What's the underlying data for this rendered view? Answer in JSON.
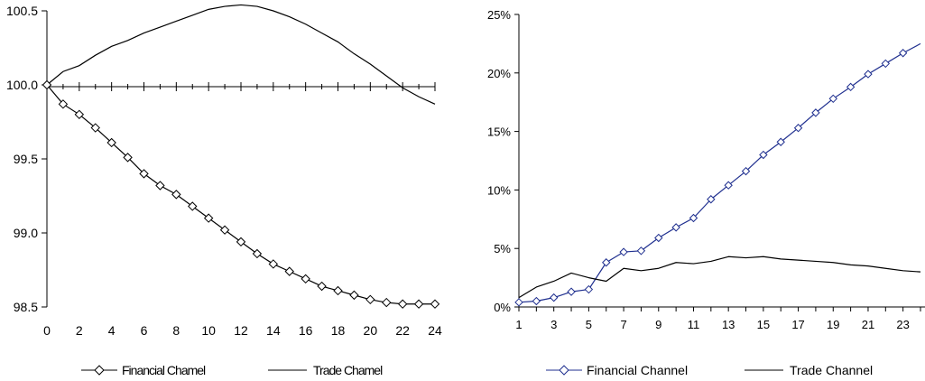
{
  "chart_data": [
    {
      "type": "line",
      "x": [
        0,
        1,
        2,
        3,
        4,
        5,
        6,
        7,
        8,
        9,
        10,
        11,
        12,
        13,
        14,
        15,
        16,
        17,
        18,
        19,
        20,
        21,
        22,
        23,
        24
      ],
      "xticks": [
        "0",
        "2",
        "4",
        "6",
        "8",
        "10",
        "12",
        "14",
        "16",
        "18",
        "20",
        "22",
        "24"
      ],
      "yticks": [
        "98.5",
        "99.0",
        "99.5",
        "100.0",
        "100.5"
      ],
      "ylim": [
        98.5,
        100.5
      ],
      "xlim": [
        0,
        24
      ],
      "grid": false,
      "legend": "bottom",
      "series": [
        {
          "name": "Financial Chamel",
          "marker": "diamond",
          "color": "#000000",
          "values": [
            100.0,
            99.87,
            99.8,
            99.71,
            99.61,
            99.51,
            99.4,
            99.32,
            99.26,
            99.18,
            99.1,
            99.02,
            98.94,
            98.86,
            98.79,
            98.74,
            98.69,
            98.64,
            98.61,
            98.58,
            98.55,
            98.53,
            98.52,
            98.52,
            98.52
          ]
        },
        {
          "name": "Trade Chamel",
          "marker": "none",
          "color": "#000000",
          "values": [
            100.0,
            100.09,
            100.13,
            100.2,
            100.26,
            100.3,
            100.35,
            100.39,
            100.43,
            100.47,
            100.51,
            100.53,
            100.54,
            100.53,
            100.5,
            100.46,
            100.41,
            100.35,
            100.29,
            100.21,
            100.14,
            100.06,
            99.98,
            99.92,
            99.87
          ]
        }
      ]
    },
    {
      "type": "line",
      "x": [
        1,
        2,
        3,
        4,
        5,
        6,
        7,
        8,
        9,
        10,
        11,
        12,
        13,
        14,
        15,
        16,
        17,
        18,
        19,
        20,
        21,
        22,
        23,
        24
      ],
      "xticks": [
        "1",
        "3",
        "5",
        "7",
        "9",
        "11",
        "13",
        "15",
        "17",
        "19",
        "21",
        "23"
      ],
      "yticks": [
        "0%",
        "5%",
        "10%",
        "15%",
        "20%",
        "25%"
      ],
      "ylim": [
        0,
        25
      ],
      "xlim": [
        1,
        24
      ],
      "grid": false,
      "legend": "bottom",
      "series": [
        {
          "name": "Financial Channel",
          "marker": "diamond",
          "color": "#1f2f8f",
          "values": [
            0.4,
            0.5,
            0.8,
            1.3,
            1.5,
            3.8,
            4.7,
            4.8,
            5.9,
            6.8,
            7.6,
            9.2,
            10.4,
            11.6,
            13.0,
            14.1,
            15.3,
            16.6,
            17.8,
            18.8,
            19.9,
            20.8,
            21.7,
            22.5
          ]
        },
        {
          "name": "Trade Channel",
          "marker": "none",
          "color": "#000000",
          "values": [
            0.8,
            1.7,
            2.2,
            2.9,
            2.5,
            2.2,
            3.3,
            3.1,
            3.3,
            3.8,
            3.7,
            3.9,
            4.3,
            4.2,
            4.3,
            4.1,
            4.0,
            3.9,
            3.8,
            3.6,
            3.5,
            3.3,
            3.1,
            3.0
          ]
        }
      ]
    }
  ]
}
